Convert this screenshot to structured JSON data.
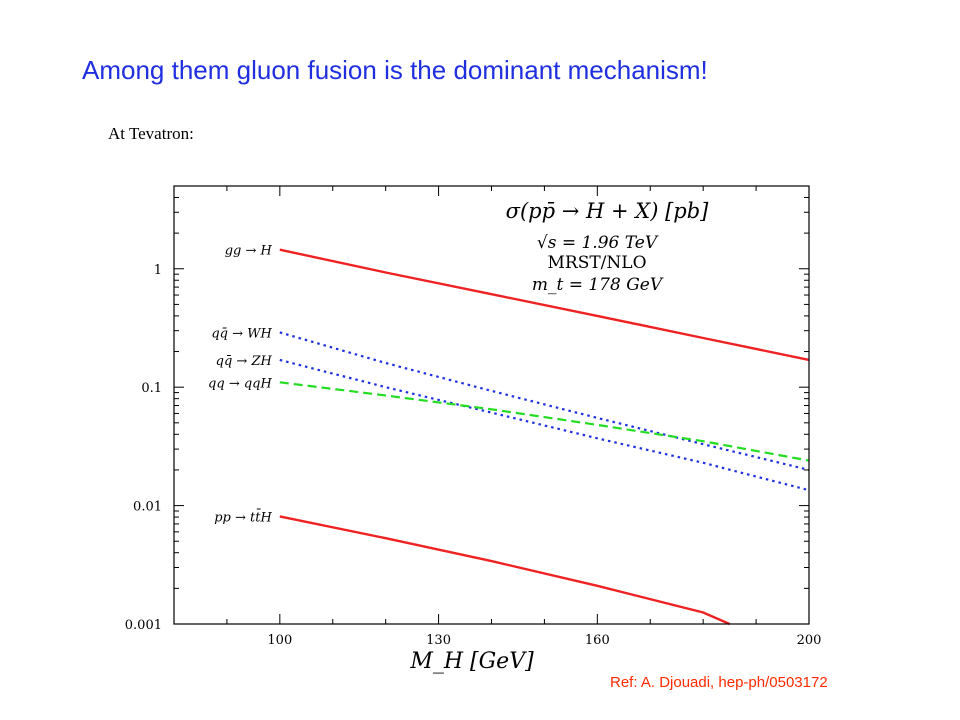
{
  "slide": {
    "headline": "Among them gluon fusion is the dominant mechanism!",
    "subheading": "At Tevatron:",
    "reference": "Ref: A. Djouadi, hep-ph/0503172"
  },
  "chart_data": {
    "type": "line",
    "title": "σ(pp̄ → H + X) [pb]",
    "subtitle_lines": [
      "√s = 1.96 TeV",
      "MRST/NLO",
      "m_t = 178 GeV"
    ],
    "xlabel": "M_H [GeV]",
    "ylabel": "",
    "x_scale": "linear",
    "y_scale": "log",
    "xlim": [
      80,
      200
    ],
    "ylim": [
      0.001,
      5
    ],
    "x_ticks": [
      100,
      130,
      160,
      200
    ],
    "y_ticks": [
      0.001,
      0.01,
      0.1,
      1
    ],
    "y_tick_labels": [
      "0.001",
      "0.01",
      "0.1",
      "1"
    ],
    "grid": false,
    "series": [
      {
        "name": "gg → H",
        "color": "#ee2222",
        "style": "solid",
        "x": [
          100,
          120,
          140,
          160,
          180,
          200
        ],
        "y": [
          1.45,
          0.93,
          0.61,
          0.4,
          0.26,
          0.17
        ]
      },
      {
        "name": "qq̄ → WH",
        "color": "#1f2fe0",
        "style": "dotted",
        "x": [
          100,
          120,
          140,
          160,
          180,
          200
        ],
        "y": [
          0.29,
          0.16,
          0.093,
          0.055,
          0.033,
          0.02
        ]
      },
      {
        "name": "qq̄ → ZH",
        "color": "#1f2fe0",
        "style": "dotted",
        "x": [
          100,
          120,
          140,
          160,
          180,
          200
        ],
        "y": [
          0.17,
          0.1,
          0.061,
          0.037,
          0.023,
          0.0135
        ]
      },
      {
        "name": "qq → qqH",
        "color": "#22dd22",
        "style": "dashed",
        "x": [
          100,
          120,
          140,
          160,
          180,
          200
        ],
        "y": [
          0.11,
          0.085,
          0.065,
          0.048,
          0.035,
          0.024
        ]
      },
      {
        "name": "pp → tt̄H",
        "color": "#ee2222",
        "style": "solid",
        "x": [
          100,
          120,
          140,
          160,
          180,
          185
        ],
        "y": [
          0.0081,
          0.0053,
          0.0034,
          0.0021,
          0.00125,
          0.001
        ]
      }
    ]
  }
}
